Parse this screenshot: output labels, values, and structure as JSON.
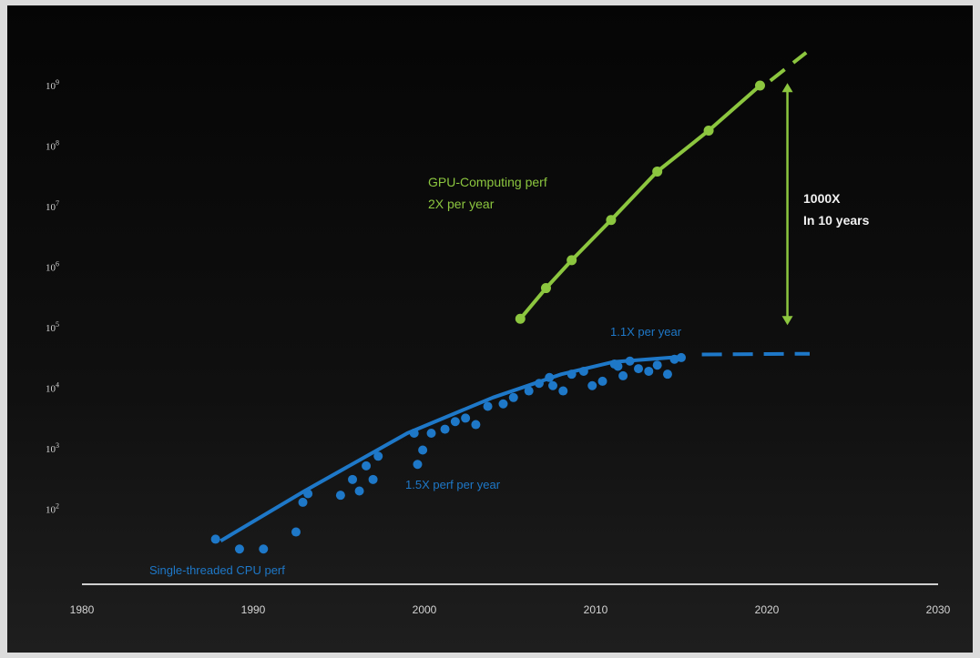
{
  "chart_data": {
    "type": "line",
    "y_scale": "log",
    "xlim": [
      1980,
      2030
    ],
    "ylim_exponent": [
      1,
      9
    ],
    "x_ticks": [
      "1980",
      "1990",
      "2000",
      "2010",
      "2020",
      "2030"
    ],
    "y_ticks": [
      {
        "value": 100,
        "base": "10",
        "exp": "2"
      },
      {
        "value": 1000,
        "base": "10",
        "exp": "3"
      },
      {
        "value": 10000,
        "base": "10",
        "exp": "4"
      },
      {
        "value": 100000,
        "base": "10",
        "exp": "5"
      },
      {
        "value": 1000000,
        "base": "10",
        "exp": "6"
      },
      {
        "value": 10000000,
        "base": "10",
        "exp": "7"
      },
      {
        "value": 100000000,
        "base": "10",
        "exp": "8"
      },
      {
        "value": 1000000000,
        "base": "10",
        "exp": "9"
      }
    ],
    "series": [
      {
        "name": "GPU-Computing perf",
        "color": "#8cc63f",
        "style": "line-with-markers",
        "points": [
          [
            2005.6,
            140000
          ],
          [
            2007.1,
            450000
          ],
          [
            2008.6,
            1300000
          ],
          [
            2010.9,
            6000000
          ],
          [
            2013.6,
            38000000
          ],
          [
            2016.6,
            180000000
          ],
          [
            2019.6,
            1000000000
          ]
        ],
        "projection": [
          [
            2020.2,
            1200000000
          ],
          [
            2022.3,
            3500000000
          ]
        ]
      },
      {
        "name": "Single-threaded CPU perf",
        "color": "#1e78c8",
        "style": "trend-and-scatter",
        "trend": [
          [
            1988.1,
            30
          ],
          [
            1993.0,
            200
          ],
          [
            1999.0,
            1800
          ],
          [
            2004.0,
            7000
          ],
          [
            2008.0,
            17000
          ],
          [
            2011.0,
            27000
          ],
          [
            2015.0,
            33000
          ]
        ],
        "projection": [
          [
            2016.2,
            36000
          ],
          [
            2022.5,
            37000
          ]
        ],
        "scatter": [
          [
            1987.8,
            32
          ],
          [
            1989.2,
            22
          ],
          [
            1990.6,
            22
          ],
          [
            1992.5,
            42
          ],
          [
            1992.9,
            130
          ],
          [
            1993.2,
            180
          ],
          [
            1995.1,
            170
          ],
          [
            1995.8,
            310
          ],
          [
            1996.2,
            200
          ],
          [
            1996.6,
            520
          ],
          [
            1997.0,
            310
          ],
          [
            1997.3,
            750
          ],
          [
            1999.4,
            1800
          ],
          [
            1999.6,
            550
          ],
          [
            1999.9,
            950
          ],
          [
            2000.4,
            1800
          ],
          [
            2001.2,
            2100
          ],
          [
            2001.8,
            2800
          ],
          [
            2002.4,
            3200
          ],
          [
            2003.0,
            2500
          ],
          [
            2003.7,
            5000
          ],
          [
            2004.6,
            5500
          ],
          [
            2005.2,
            7000
          ],
          [
            2006.1,
            9000
          ],
          [
            2006.7,
            12000
          ],
          [
            2007.3,
            15000
          ],
          [
            2008.1,
            9000
          ],
          [
            2008.6,
            17000
          ],
          [
            2009.3,
            19000
          ],
          [
            2009.8,
            11000
          ],
          [
            2010.4,
            13000
          ],
          [
            2011.1,
            25000
          ],
          [
            2011.6,
            16000
          ],
          [
            2012.0,
            28000
          ],
          [
            2012.5,
            21000
          ],
          [
            2013.1,
            19000
          ],
          [
            2013.6,
            24000
          ],
          [
            2014.2,
            17000
          ],
          [
            2014.6,
            30000
          ],
          [
            2015.0,
            32000
          ],
          [
            2007.5,
            11000
          ],
          [
            2011.3,
            23000
          ]
        ]
      }
    ],
    "annotations": {
      "gpu_line1": "GPU-Computing perf",
      "gpu_line2": "2X per year",
      "cpu_fast": "1.5X perf per year",
      "cpu_slow": "1.1X per year",
      "cpu_label": "Single-threaded CPU perf",
      "gap_line1": "1000X",
      "gap_line2": "In 10 years"
    },
    "gap_arrow": {
      "x": 2021.2,
      "from": 110000,
      "to": 1100000000
    },
    "colors": {
      "gpu": "#8cc63f",
      "cpu": "#1e78c8",
      "axis": "#cfcfcf",
      "text": "#d4d4d4"
    }
  }
}
